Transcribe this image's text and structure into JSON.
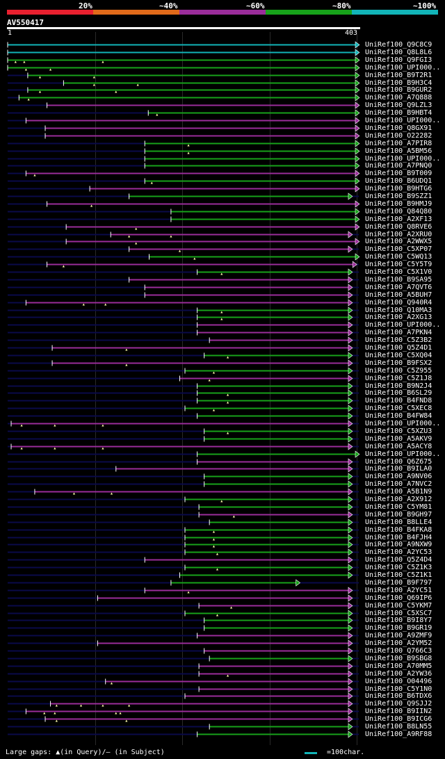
{
  "legend": {
    "labels": [
      "20%",
      "~40%",
      "~60%",
      "~80%",
      "~100%"
    ],
    "colors": [
      "#e8202f",
      "#e06a1a",
      "#9a2d9a",
      "#17a21a",
      "#12b4b8"
    ]
  },
  "query": {
    "id": "AV550417",
    "start_label": "1",
    "end_label": "403",
    "length": 403
  },
  "colors": {
    "grid": "#2a2a2a",
    "shadow": "#0a0a4a",
    "tick": "#ffffff",
    "cyan": "#12b4b8",
    "green": "#17a21a",
    "purple": "#9a2d9a"
  },
  "hits": [
    {
      "label": "UniRef100_Q9C8C9",
      "color": "cyan",
      "qs": 1,
      "qe": 403,
      "marks": []
    },
    {
      "label": "UniRef100_Q8L8L6",
      "color": "cyan",
      "qs": 1,
      "qe": 403,
      "marks": []
    },
    {
      "label": "UniRef100_Q9FGI3",
      "color": "green",
      "qs": 1,
      "qe": 403,
      "marks": [
        10,
        20,
        110
      ]
    },
    {
      "label": "UniRef100_UPI000..",
      "color": "green",
      "qs": 1,
      "qe": 403,
      "marks": [
        22,
        50
      ]
    },
    {
      "label": "UniRef100_B9T2R1",
      "color": "green",
      "qs": 24,
      "qe": 403,
      "marks": [
        38,
        100
      ]
    },
    {
      "label": "UniRef100_B9H3C4",
      "color": "green",
      "qs": 65,
      "qe": 403,
      "marks": [
        100,
        150
      ]
    },
    {
      "label": "UniRef100_B9GUR2",
      "color": "green",
      "qs": 24,
      "qe": 403,
      "marks": [
        38,
        125
      ]
    },
    {
      "label": "UniRef100_A7Q888",
      "color": "green",
      "qs": 14,
      "qe": 403,
      "marks": [
        25
      ]
    },
    {
      "label": "UniRef100_Q9LZL3",
      "color": "purple",
      "qs": 46,
      "qe": 403,
      "marks": []
    },
    {
      "label": "UniRef100_B9HBT4",
      "color": "green",
      "qs": 162,
      "qe": 403,
      "marks": [
        172
      ]
    },
    {
      "label": "UniRef100_UPI000..",
      "color": "purple",
      "qs": 22,
      "qe": 403,
      "marks": []
    },
    {
      "label": "UniRef100_Q8GX91",
      "color": "purple",
      "qs": 44,
      "qe": 403,
      "marks": []
    },
    {
      "label": "UniRef100_O22282",
      "color": "purple",
      "qs": 44,
      "qe": 403,
      "marks": []
    },
    {
      "label": "UniRef100_A7PIR8",
      "color": "green",
      "qs": 158,
      "qe": 403,
      "marks": [
        208
      ]
    },
    {
      "label": "UniRef100_A5BM56",
      "color": "green",
      "qs": 158,
      "qe": 403,
      "marks": [
        208
      ]
    },
    {
      "label": "UniRef100_UPI000..",
      "color": "green",
      "qs": 158,
      "qe": 403,
      "marks": []
    },
    {
      "label": "UniRef100_A7PNQ0",
      "color": "green",
      "qs": 158,
      "qe": 403,
      "marks": []
    },
    {
      "label": "UniRef100_B9T009",
      "color": "purple",
      "qs": 22,
      "qe": 403,
      "marks": [
        32
      ]
    },
    {
      "label": "UniRef100_B6UDQ1",
      "color": "green",
      "qs": 158,
      "qe": 403,
      "marks": [
        166
      ]
    },
    {
      "label": "UniRef100_B9HTG6",
      "color": "purple",
      "qs": 95,
      "qe": 403,
      "marks": []
    },
    {
      "label": "UniRef100_B9SZZ1",
      "color": "green",
      "qs": 140,
      "qe": 395,
      "marks": []
    },
    {
      "label": "UniRef100_B9HMJ9",
      "color": "purple",
      "qs": 46,
      "qe": 403,
      "marks": [
        97
      ]
    },
    {
      "label": "UniRef100_Q84Q80",
      "color": "green",
      "qs": 188,
      "qe": 403,
      "marks": []
    },
    {
      "label": "UniRef100_A2XF13",
      "color": "green",
      "qs": 188,
      "qe": 403,
      "marks": []
    },
    {
      "label": "UniRef100_Q8RVE6",
      "color": "purple",
      "qs": 68,
      "qe": 403,
      "marks": [
        148
      ]
    },
    {
      "label": "UniRef100_A2XRU0",
      "color": "purple",
      "qs": 119,
      "qe": 395,
      "marks": [
        140,
        188
      ]
    },
    {
      "label": "UniRef100_A2WWX5",
      "color": "purple",
      "qs": 68,
      "qe": 403,
      "marks": [
        148
      ]
    },
    {
      "label": "UniRef100_C5XP07",
      "color": "purple",
      "qs": 140,
      "qe": 395,
      "marks": [
        198
      ]
    },
    {
      "label": "UniRef100_C5WQ13",
      "color": "green",
      "qs": 163,
      "qe": 403,
      "marks": [
        215
      ]
    },
    {
      "label": "UniRef100_C5Y5T9",
      "color": "purple",
      "qs": 46,
      "qe": 400,
      "marks": [
        65
      ]
    },
    {
      "label": "UniRef100_C5X1V0",
      "color": "green",
      "qs": 218,
      "qe": 395,
      "marks": [
        246
      ]
    },
    {
      "label": "UniRef100_B9SA95",
      "color": "purple",
      "qs": 140,
      "qe": 395,
      "marks": []
    },
    {
      "label": "UniRef100_A7QVT6",
      "color": "purple",
      "qs": 158,
      "qe": 395,
      "marks": []
    },
    {
      "label": "UniRef100_A5BUH7",
      "color": "purple",
      "qs": 158,
      "qe": 395,
      "marks": []
    },
    {
      "label": "UniRef100_Q940R4",
      "color": "purple",
      "qs": 22,
      "qe": 395,
      "marks": [
        88,
        113
      ]
    },
    {
      "label": "UniRef100_Q10MA3",
      "color": "green",
      "qs": 218,
      "qe": 395,
      "marks": [
        246
      ]
    },
    {
      "label": "UniRef100_A2XG13",
      "color": "green",
      "qs": 218,
      "qe": 395,
      "marks": [
        246
      ]
    },
    {
      "label": "UniRef100_UPI000..",
      "color": "purple",
      "qs": 218,
      "qe": 395,
      "marks": []
    },
    {
      "label": "UniRef100_A7PKN4",
      "color": "purple",
      "qs": 218,
      "qe": 395,
      "marks": []
    },
    {
      "label": "UniRef100_C5Z3B2",
      "color": "purple",
      "qs": 232,
      "qe": 395,
      "marks": []
    },
    {
      "label": "UniRef100_Q5Z4D1",
      "color": "purple",
      "qs": 52,
      "qe": 395,
      "marks": [
        137
      ]
    },
    {
      "label": "UniRef100_C5XQ04",
      "color": "green",
      "qs": 226,
      "qe": 395,
      "marks": [
        253
      ]
    },
    {
      "label": "UniRef100_B9FSX2",
      "color": "purple",
      "qs": 52,
      "qe": 395,
      "marks": [
        137
      ]
    },
    {
      "label": "UniRef100_C5Z955",
      "color": "green",
      "qs": 204,
      "qe": 395,
      "marks": [
        237
      ]
    },
    {
      "label": "UniRef100_C5Z1J8",
      "color": "purple",
      "qs": 198,
      "qe": 395,
      "marks": [
        232
      ]
    },
    {
      "label": "UniRef100_B9N2J4",
      "color": "green",
      "qs": 218,
      "qe": 395,
      "marks": []
    },
    {
      "label": "UniRef100_B6SL29",
      "color": "green",
      "qs": 218,
      "qe": 395,
      "marks": [
        253
      ]
    },
    {
      "label": "UniRef100_B4FND8",
      "color": "green",
      "qs": 218,
      "qe": 395,
      "marks": [
        253
      ]
    },
    {
      "label": "UniRef100_C5XEC8",
      "color": "green",
      "qs": 204,
      "qe": 395,
      "marks": [
        237
      ]
    },
    {
      "label": "UniRef100_B4FW84",
      "color": "green",
      "qs": 218,
      "qe": 395,
      "marks": []
    },
    {
      "label": "UniRef100_UPI000..",
      "color": "purple",
      "qs": 5,
      "qe": 395,
      "marks": [
        17,
        55,
        110
      ]
    },
    {
      "label": "UniRef100_C5XZU3",
      "color": "green",
      "qs": 226,
      "qe": 395,
      "marks": [
        253
      ]
    },
    {
      "label": "UniRef100_A5AKV9",
      "color": "green",
      "qs": 226,
      "qe": 395,
      "marks": []
    },
    {
      "label": "UniRef100_A5ACY8",
      "color": "purple",
      "qs": 5,
      "qe": 395,
      "marks": [
        17,
        55,
        110
      ]
    },
    {
      "label": "UniRef100_UPI000..",
      "color": "green",
      "qs": 218,
      "qe": 403,
      "marks": []
    },
    {
      "label": "UniRef100_Q6Z675",
      "color": "purple",
      "qs": 218,
      "qe": 395,
      "marks": []
    },
    {
      "label": "UniRef100_B9ILA0",
      "color": "purple",
      "qs": 125,
      "qe": 395,
      "marks": []
    },
    {
      "label": "UniRef100_A9NV06",
      "color": "green",
      "qs": 226,
      "qe": 395,
      "marks": []
    },
    {
      "label": "UniRef100_A7NVC2",
      "color": "green",
      "qs": 226,
      "qe": 395,
      "marks": []
    },
    {
      "label": "UniRef100_A5B1N9",
      "color": "purple",
      "qs": 32,
      "qe": 395,
      "marks": [
        77,
        120
      ]
    },
    {
      "label": "UniRef100_A2X912",
      "color": "green",
      "qs": 204,
      "qe": 395,
      "marks": [
        246
      ]
    },
    {
      "label": "UniRef100_C5YM81",
      "color": "green",
      "qs": 220,
      "qe": 395,
      "marks": []
    },
    {
      "label": "UniRef100_B9GH97",
      "color": "purple",
      "qs": 220,
      "qe": 395,
      "marks": [
        260
      ]
    },
    {
      "label": "UniRef100_B8LLE4",
      "color": "green",
      "qs": 232,
      "qe": 395,
      "marks": []
    },
    {
      "label": "UniRef100_B4FKA8",
      "color": "green",
      "qs": 204,
      "qe": 395,
      "marks": [
        237
      ]
    },
    {
      "label": "UniRef100_B4FJH4",
      "color": "green",
      "qs": 204,
      "qe": 395,
      "marks": [
        237
      ]
    },
    {
      "label": "UniRef100_A9NXW9",
      "color": "green",
      "qs": 204,
      "qe": 395,
      "marks": [
        237
      ]
    },
    {
      "label": "UniRef100_A2YC53",
      "color": "green",
      "qs": 204,
      "qe": 395,
      "marks": [
        241
      ]
    },
    {
      "label": "UniRef100_Q5Z4D4",
      "color": "purple",
      "qs": 158,
      "qe": 395,
      "marks": []
    },
    {
      "label": "UniRef100_C5Z1K3",
      "color": "green",
      "qs": 204,
      "qe": 395,
      "marks": [
        241
      ]
    },
    {
      "label": "UniRef100_C5Z1K1",
      "color": "green",
      "qs": 198,
      "qe": 395,
      "marks": []
    },
    {
      "label": "UniRef100_B9F797",
      "color": "green",
      "qs": 188,
      "qe": 335,
      "marks": []
    },
    {
      "label": "UniRef100_A2YC51",
      "color": "purple",
      "qs": 158,
      "qe": 395,
      "marks": [
        208
      ]
    },
    {
      "label": "UniRef100_Q69IP6",
      "color": "purple",
      "qs": 104,
      "qe": 395,
      "marks": []
    },
    {
      "label": "UniRef100_C5YKM7",
      "color": "purple",
      "qs": 220,
      "qe": 395,
      "marks": [
        257
      ]
    },
    {
      "label": "UniRef100_C5XSC7",
      "color": "green",
      "qs": 204,
      "qe": 395,
      "marks": [
        241
      ]
    },
    {
      "label": "UniRef100_B9I8Y7",
      "color": "green",
      "qs": 226,
      "qe": 395,
      "marks": []
    },
    {
      "label": "UniRef100_B9GR19",
      "color": "green",
      "qs": 226,
      "qe": 395,
      "marks": []
    },
    {
      "label": "UniRef100_A9ZMF9",
      "color": "purple",
      "qs": 218,
      "qe": 395,
      "marks": []
    },
    {
      "label": "UniRef100_A2YM52",
      "color": "purple",
      "qs": 104,
      "qe": 395,
      "marks": []
    },
    {
      "label": "UniRef100_Q766C3",
      "color": "purple",
      "qs": 226,
      "qe": 395,
      "marks": []
    },
    {
      "label": "UniRef100_B9SBG8",
      "color": "green",
      "qs": 232,
      "qe": 395,
      "marks": []
    },
    {
      "label": "UniRef100_A70MM5",
      "color": "purple",
      "qs": 220,
      "qe": 395,
      "marks": []
    },
    {
      "label": "UniRef100_A2YW36",
      "color": "purple",
      "qs": 220,
      "qe": 395,
      "marks": [
        253
      ]
    },
    {
      "label": "UniRef100_O04496",
      "color": "purple",
      "qs": 113,
      "qe": 395,
      "marks": [
        120
      ]
    },
    {
      "label": "UniRef100_C5Y1N0",
      "color": "purple",
      "qs": 220,
      "qe": 395,
      "marks": []
    },
    {
      "label": "UniRef100_B6TDX6",
      "color": "purple",
      "qs": 204,
      "qe": 395,
      "marks": []
    },
    {
      "label": "UniRef100_Q9SJJ2",
      "color": "purple",
      "qs": 50,
      "qe": 395,
      "marks": [
        57,
        85,
        110,
        140
      ]
    },
    {
      "label": "UniRef100_B9IIN2",
      "color": "purple",
      "qs": 22,
      "qe": 395,
      "marks": [
        43,
        55,
        125,
        130
      ]
    },
    {
      "label": "UniRef100_B9ICG6",
      "color": "purple",
      "qs": 44,
      "qe": 395,
      "marks": [
        57,
        137
      ]
    },
    {
      "label": "UniRef100_B8LN55",
      "color": "green",
      "qs": 232,
      "qe": 395,
      "marks": []
    },
    {
      "label": "UniRef100_A9RF88",
      "color": "green",
      "qs": 218,
      "qe": 395,
      "marks": []
    }
  ],
  "footer": {
    "left": "Large gaps: ▲(in Query)/— (in Subject)",
    "right": "=100char."
  }
}
